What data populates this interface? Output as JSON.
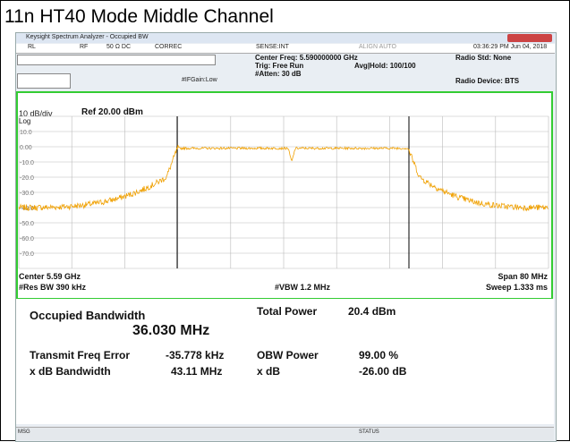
{
  "caption": "11n HT40 Mode Middle Channel",
  "window": {
    "title": "Keysight Spectrum Analyzer - Occupied BW"
  },
  "status_row": {
    "rl": "RL",
    "rf": "RF",
    "impedance": "50 Ω  DC",
    "correc": "CORREC",
    "sense": "SENSE:INT",
    "align": "ALIGN AUTO",
    "datetime": "03:36:29 PM Jun 04, 2018"
  },
  "settings": {
    "center_freq": "Center Freq: 5.590000000 GHz",
    "trig": "Trig: Free Run",
    "atten": "#Atten: 30 dB",
    "avg": "Avg|Hold: 100/100",
    "ifgain": "#IFGain:Low",
    "radio_std": "Radio Std: None",
    "radio_device": "Radio Device: BTS"
  },
  "plot": {
    "scale": "10 dB/div",
    "ref": "Ref 20.00 dBm",
    "log": "Log",
    "y_labels": [
      "10.0",
      "0.00",
      "-10.0",
      "-20.0",
      "-30.0",
      "-40.0",
      "-50.0",
      "-60.0",
      "-70.0"
    ],
    "center": "Center 5.59 GHz",
    "res_bw": "#Res BW 390 kHz",
    "vbw": "#VBW 1.2 MHz",
    "span": "Span 80 MHz",
    "sweep": "Sweep 1.333 ms"
  },
  "results": {
    "obw_label": "Occupied Bandwidth",
    "obw_value": "36.030 MHz",
    "total_power_label": "Total Power",
    "total_power_value": "20.4 dBm",
    "tfe_label": "Transmit Freq Error",
    "tfe_value": "-35.778 kHz",
    "obw_power_label": "OBW Power",
    "obw_power_value": "99.00 %",
    "xdb_bw_label": "x dB Bandwidth",
    "xdb_bw_value": "43.11 MHz",
    "xdb_label": "x dB",
    "xdb_value": "-26.00 dB"
  },
  "statusbar": {
    "msg": "MSG",
    "status": "STATUS"
  }
}
